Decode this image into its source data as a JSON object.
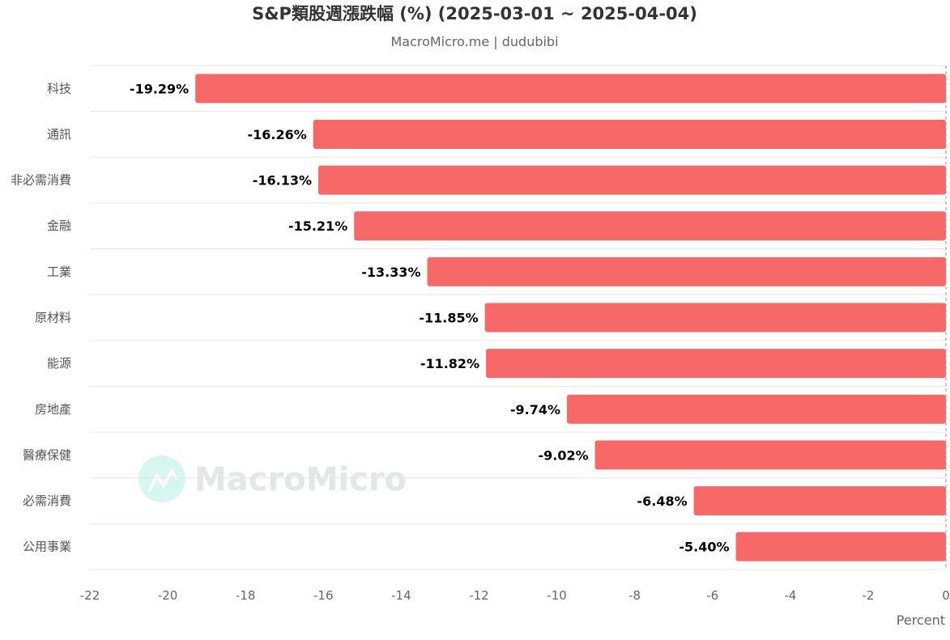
{
  "chart_data": {
    "type": "bar",
    "orientation": "horizontal",
    "title": "S&P類股週漲跌幅 (%) (2025-03-01 ~ 2025-04-04)",
    "subtitle": "MacroMicro.me | dudubibi",
    "categories": [
      "科技",
      "通訊",
      "非必需消費",
      "金融",
      "工業",
      "原材料",
      "能源",
      "房地產",
      "醫療保健",
      "必需消費",
      "公用事業"
    ],
    "values": [
      -19.29,
      -16.26,
      -16.13,
      -15.21,
      -13.33,
      -11.85,
      -11.82,
      -9.74,
      -9.02,
      -6.48,
      -5.4
    ],
    "data_labels": [
      "-19.29%",
      "-16.26%",
      "-16.13%",
      "-15.21%",
      "-13.33%",
      "-11.85%",
      "-11.82%",
      "-9.74%",
      "-9.02%",
      "-6.48%",
      "-5.40%"
    ],
    "xlabel": "Percent",
    "ylabel": "",
    "xlim": [
      -22,
      0
    ],
    "xticks": [
      -22,
      -20,
      -18,
      -16,
      -14,
      -12,
      -10,
      -8,
      -6,
      -4,
      -2,
      0
    ],
    "grid": true,
    "bar_color": "#f76868"
  },
  "watermark": "MacroMicro"
}
